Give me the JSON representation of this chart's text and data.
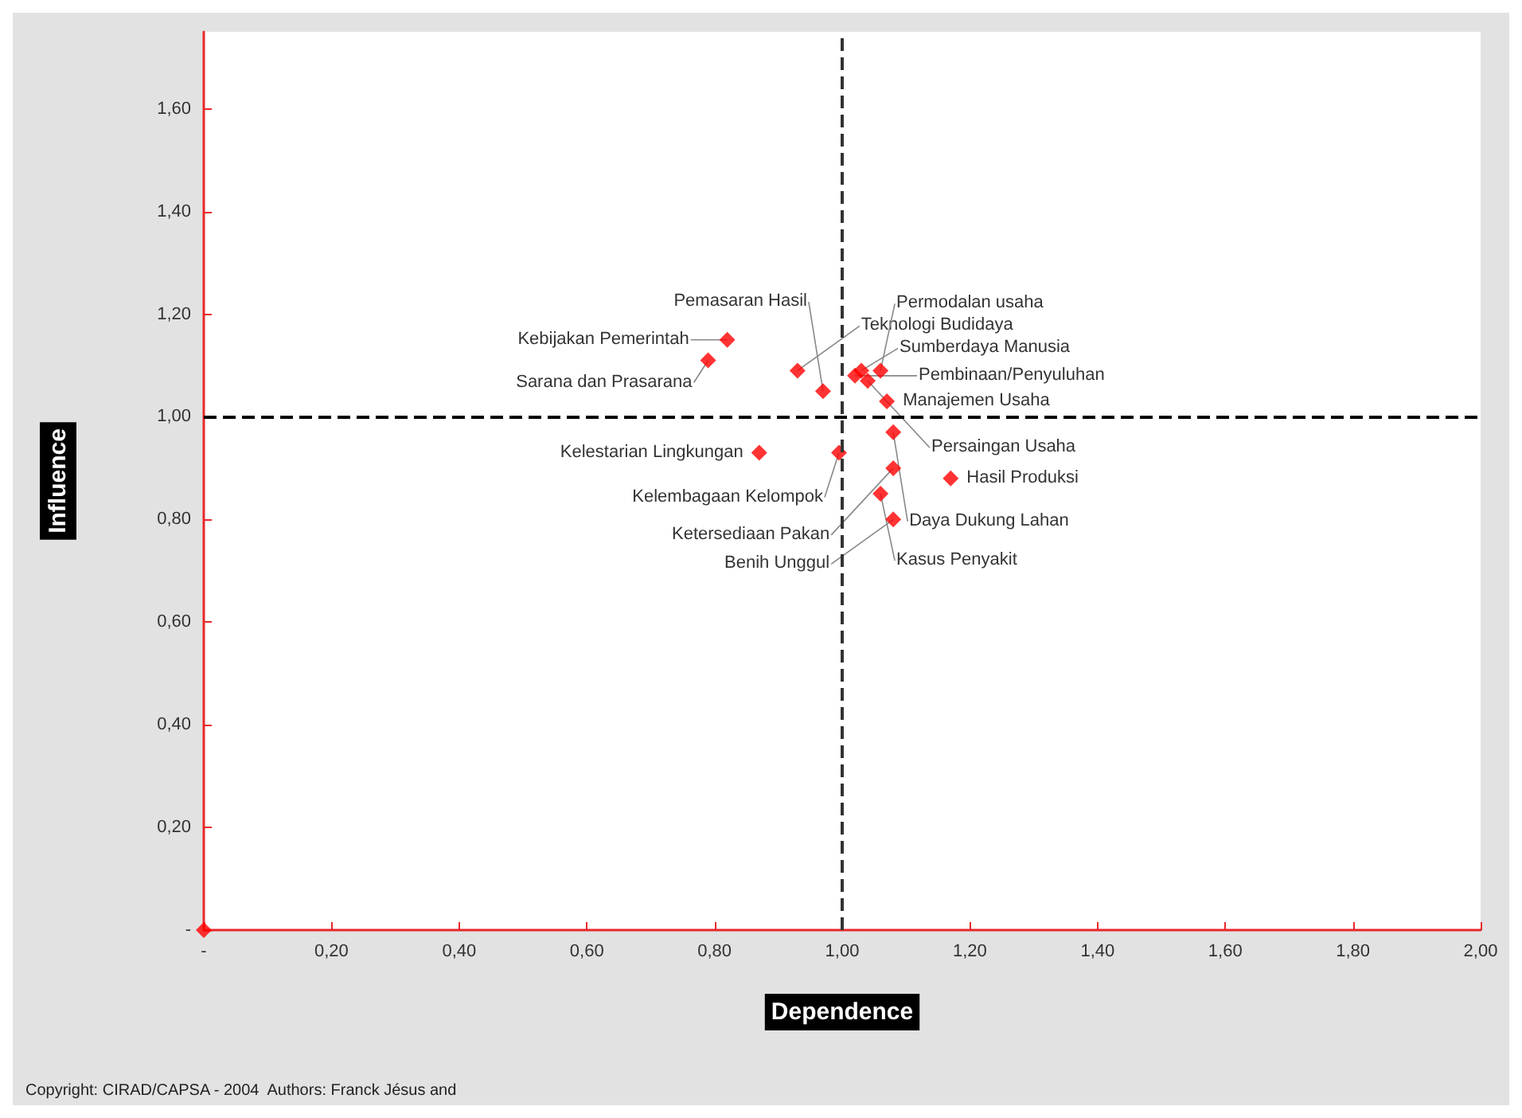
{
  "chart_data": {
    "type": "scatter",
    "xlabel": "Dependence",
    "ylabel": "Influence",
    "x": [
      0.82,
      0.79,
      0.93,
      0.97,
      1.02,
      1.03,
      1.06,
      1.04,
      1.07,
      0.87,
      0.995,
      1.08,
      1.08,
      1.17,
      1.06,
      1.08,
      0
    ],
    "values": [
      1.15,
      1.11,
      1.09,
      1.05,
      1.08,
      1.09,
      1.09,
      1.07,
      1.03,
      0.93,
      0.93,
      0.97,
      0.9,
      0.88,
      0.85,
      0.8,
      0
    ],
    "color": "#ff0000",
    "marker": "diamond",
    "xlim": [
      0,
      2
    ],
    "ylim": [
      0,
      1.75
    ],
    "xticks": [
      {
        "value": 0,
        "label": "-"
      },
      {
        "value": 0.2,
        "label": "0,20"
      },
      {
        "value": 0.4,
        "label": "0,40"
      },
      {
        "value": 0.6,
        "label": "0,60"
      },
      {
        "value": 0.8,
        "label": "0,80"
      },
      {
        "value": 1,
        "label": "1,00"
      },
      {
        "value": 1.2,
        "label": "1,20"
      },
      {
        "value": 1.4,
        "label": "1,40"
      },
      {
        "value": 1.6,
        "label": "1,60"
      },
      {
        "value": 1.8,
        "label": "1,80"
      },
      {
        "value": 2,
        "label": "2,00"
      }
    ],
    "yticks": [
      {
        "value": 0,
        "label": "-"
      },
      {
        "value": 0.2,
        "label": "0,20"
      },
      {
        "value": 0.4,
        "label": "0,40"
      },
      {
        "value": 0.6,
        "label": "0,60"
      },
      {
        "value": 0.8,
        "label": "0,80"
      },
      {
        "value": 1,
        "label": "1,00"
      },
      {
        "value": 1.2,
        "label": "1,20"
      },
      {
        "value": 1.4,
        "label": "1,40"
      },
      {
        "value": 1.6,
        "label": "1,60"
      }
    ],
    "ref_lines": [
      {
        "axis": "x",
        "value": 1,
        "label": null,
        "color": "#333333",
        "line_style": "dashed"
      },
      {
        "axis": "y",
        "value": 1,
        "label": null,
        "color": "#000000",
        "line_style": "dashed"
      }
    ],
    "annotations": [
      {
        "text": "Kebijakan Pemerintah",
        "x": 0.82,
        "y": 1.15
      },
      {
        "text": "Sarana dan Prasarana",
        "x": 0.79,
        "y": 1.11
      },
      {
        "text": "Teknologi Budidaya",
        "x": 0.93,
        "y": 1.09
      },
      {
        "text": "Pemasaran Hasil",
        "x": 0.97,
        "y": 1.05
      },
      {
        "text": "Pembinaan/Penyuluhan",
        "x": 1.02,
        "y": 1.08
      },
      {
        "text": "Sumberdaya Manusia",
        "x": 1.03,
        "y": 1.09
      },
      {
        "text": "Permodalan usaha",
        "x": 1.06,
        "y": 1.09
      },
      {
        "text": "Persaingan Usaha",
        "x": 1.04,
        "y": 1.07
      },
      {
        "text": "Manajemen Usaha",
        "x": 1.07,
        "y": 1.03
      },
      {
        "text": "Kelestarian Lingkungan",
        "x": 0.87,
        "y": 0.93
      },
      {
        "text": "Kelembagaan Kelompok",
        "x": 0.995,
        "y": 0.93
      },
      {
        "text": "Daya Dukung Lahan",
        "x": 1.08,
        "y": 0.97
      },
      {
        "text": "Ketersediaan Pakan",
        "x": 1.08,
        "y": 0.9
      },
      {
        "text": "Hasil Produksi",
        "x": 1.17,
        "y": 0.88
      },
      {
        "text": "Kasus Penyakit",
        "x": 1.06,
        "y": 0.85
      },
      {
        "text": "Benih Unggul",
        "x": 1.08,
        "y": 0.8
      },
      "Copyright: CIRAD/CAPSA - 2004  Authors: Franck Jésus and"
    ]
  }
}
